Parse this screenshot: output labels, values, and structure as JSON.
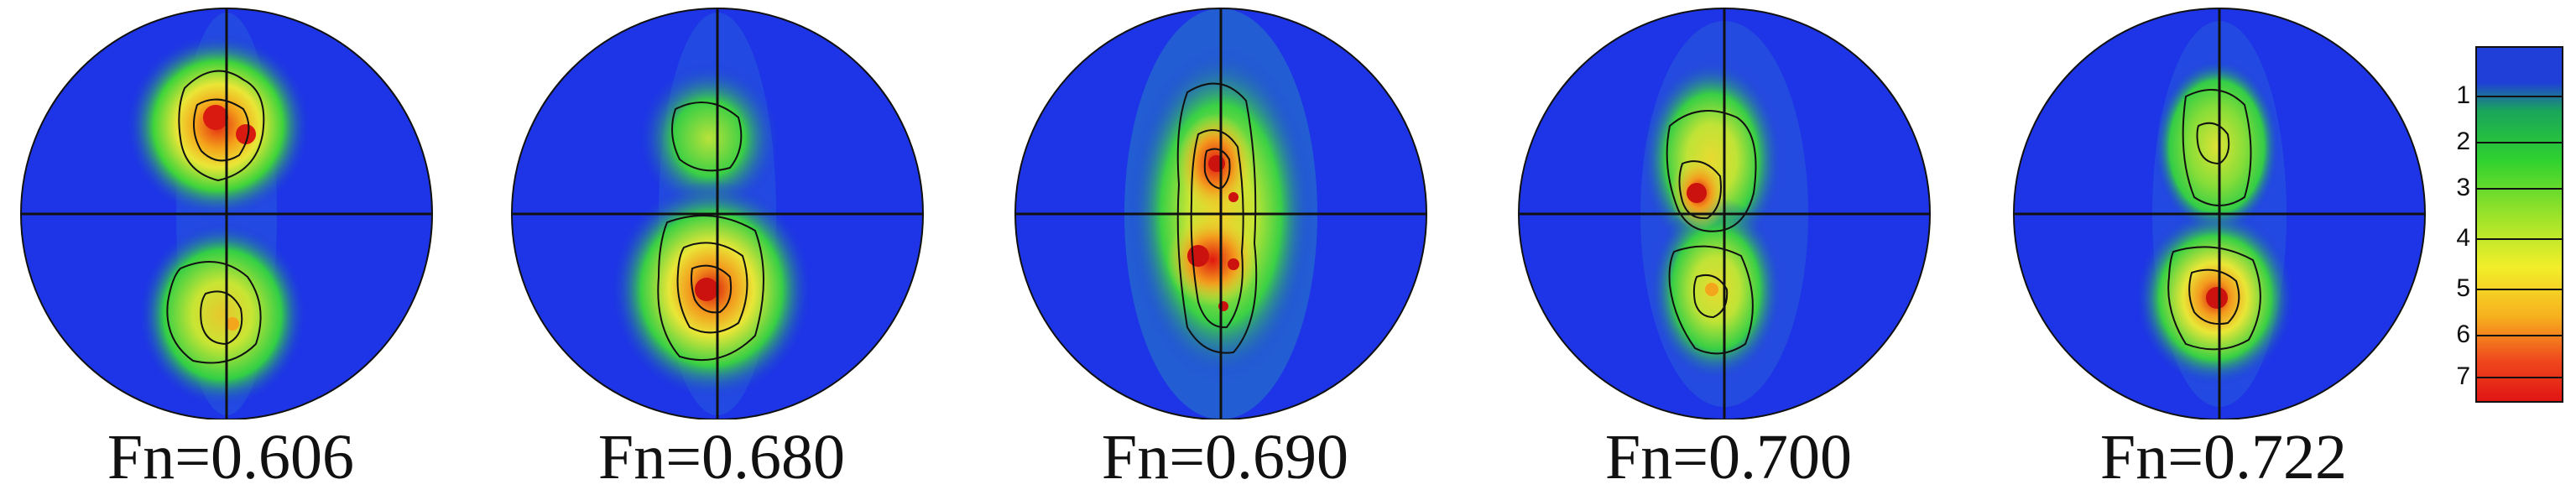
{
  "panels": [
    {
      "label": "Fn=0.606"
    },
    {
      "label": "Fn=0.680"
    },
    {
      "label": "Fn=0.690"
    },
    {
      "label": "Fn=0.700"
    },
    {
      "label": "Fn=0.722"
    }
  ],
  "colorbar": {
    "ticks": [
      "1",
      "2",
      "3",
      "4",
      "5",
      "6",
      "7"
    ],
    "colors": [
      "#1f3fd8",
      "#1aa55a",
      "#2fd22f",
      "#9ee32a",
      "#f2ef2a",
      "#f7b01e",
      "#f04a1d",
      "#e01414"
    ]
  },
  "colors": {
    "background_blue": "#1d35e6",
    "green": "#20c64a",
    "yellow": "#e8e63a",
    "red": "#e22a12"
  }
}
